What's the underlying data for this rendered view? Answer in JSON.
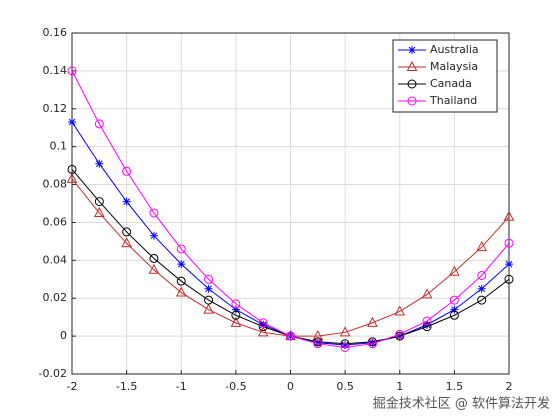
{
  "chart_data": {
    "type": "line",
    "x": [
      -2,
      -1.75,
      -1.5,
      -1.25,
      -1,
      -0.75,
      -0.5,
      -0.25,
      0,
      0.25,
      0.5,
      0.75,
      1,
      1.25,
      1.5,
      1.75,
      2
    ],
    "series": [
      {
        "name": "Australia",
        "color": "#0000ff",
        "marker": "star",
        "values": [
          0.113,
          0.091,
          0.071,
          0.053,
          0.038,
          0.025,
          0.014,
          0.006,
          0,
          -0.0035,
          -0.0047,
          -0.0035,
          0,
          0.006,
          0.014,
          0.025,
          0.038
        ]
      },
      {
        "name": "Malaysia",
        "color": "#c0302b",
        "marker": "triangle",
        "values": [
          0.083,
          0.065,
          0.049,
          0.035,
          0.023,
          0.014,
          0.007,
          0.002,
          0,
          0,
          0.002,
          0.007,
          0.013,
          0.022,
          0.034,
          0.047,
          0.063
        ]
      },
      {
        "name": "Canada",
        "color": "#000000",
        "marker": "circle",
        "values": [
          0.088,
          0.071,
          0.055,
          0.041,
          0.029,
          0.019,
          0.011,
          0.005,
          0,
          -0.003,
          -0.004,
          -0.003,
          0,
          0.005,
          0.011,
          0.019,
          0.03
        ]
      },
      {
        "name": "Thailand",
        "color": "#ff00ff",
        "marker": "circle",
        "values": [
          0.14,
          0.112,
          0.087,
          0.065,
          0.046,
          0.03,
          0.017,
          0.007,
          0,
          -0.004,
          -0.006,
          -0.004,
          0.001,
          0.008,
          0.019,
          0.032,
          0.049
        ]
      }
    ],
    "xlim": [
      -2,
      2
    ],
    "xticks": [
      -2,
      -1.5,
      -1,
      -0.5,
      0,
      0.5,
      1,
      1.5,
      2
    ],
    "ylim": [
      -0.02,
      0.16
    ],
    "yticks": [
      -0.02,
      0,
      0.02,
      0.04,
      0.06,
      0.08,
      0.1,
      0.12,
      0.14,
      0.16
    ],
    "grid": true,
    "legend": "top-right",
    "watermark": "掘金技术社区 @ 软件算法开发"
  }
}
